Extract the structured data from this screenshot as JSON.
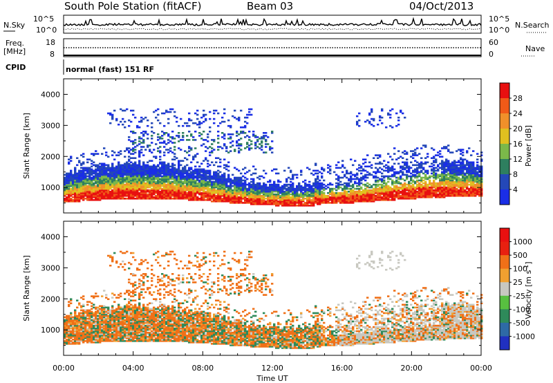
{
  "header": {
    "station": "South Pole Station (fitACF)",
    "beam": "Beam 03",
    "date": "04/Oct/2013"
  },
  "top_panels": {
    "nsky_label": "N.Sky",
    "nsky_ticks": [
      "10^5",
      "10^0"
    ],
    "nsearch_label": "N.Search",
    "nsearch_ticks": [
      "10^5",
      "10^0"
    ],
    "freq_label_line1": "Freq.",
    "freq_label_line2": "[MHz]",
    "freq_ticks": [
      "18",
      "8"
    ],
    "nave_label": "Nave",
    "nave_ticks": [
      "60",
      "0"
    ],
    "cpid_label": "CPID",
    "cpid_value": "normal (fast) 151 RF"
  },
  "chart_data": [
    {
      "type": "heatmap",
      "name": "power-panel",
      "ylabel": "Slant Range [km]",
      "ytick_labels": [
        "1000",
        "2000",
        "3000",
        "4000"
      ],
      "ylim": [
        180,
        4500
      ],
      "colorbar_label": "Power [dB]",
      "colorbar_ticks": [
        "4",
        "8",
        "12",
        "16",
        "20",
        "24",
        "28"
      ],
      "colorbar_colors": [
        "#1a2ee6",
        "#2448b8",
        "#2e7f5f",
        "#7bb84a",
        "#e0c020",
        "#f0902a",
        "#f05a18",
        "#e81010"
      ],
      "x_hours": [
        0,
        24
      ],
      "description_bands": [
        {
          "range_km": [
            500,
            850
          ],
          "value_db": 28
        },
        {
          "range_km": [
            850,
            1050
          ],
          "value_db": 22
        },
        {
          "range_km": [
            1050,
            1300
          ],
          "value_db": 14
        },
        {
          "range_km": [
            1300,
            1700
          ],
          "value_db": 6
        },
        {
          "range_km": [
            2200,
            2700
          ],
          "value_db": 6
        },
        {
          "range_km": [
            3000,
            3500
          ],
          "value_db": 4
        }
      ]
    },
    {
      "type": "heatmap",
      "name": "velocity-panel",
      "ylabel": "Slant Range [km]",
      "ytick_labels": [
        "1000",
        "2000",
        "3000",
        "4000"
      ],
      "ylim": [
        180,
        4500
      ],
      "colorbar_label": "Velocity [m s",
      "colorbar_unit_exp": "-1",
      "colorbar_unit_close": "]",
      "colorbar_ticks": [
        "1000",
        "500",
        "100",
        "25",
        "-25",
        "-100",
        "-500",
        "-1000"
      ],
      "colorbar_colors": [
        "#2030c0",
        "#2e6aa6",
        "#2e8a5a",
        "#58c040",
        "#c8c8c0",
        "#f0a030",
        "#f07018",
        "#e82010",
        "#e81010"
      ],
      "x_hours": [
        0,
        24
      ]
    }
  ],
  "x_axis": {
    "label": "Time UT",
    "ticks": [
      "00:00",
      "04:00",
      "08:00",
      "12:00",
      "16:00",
      "20:00",
      "00:00"
    ]
  }
}
